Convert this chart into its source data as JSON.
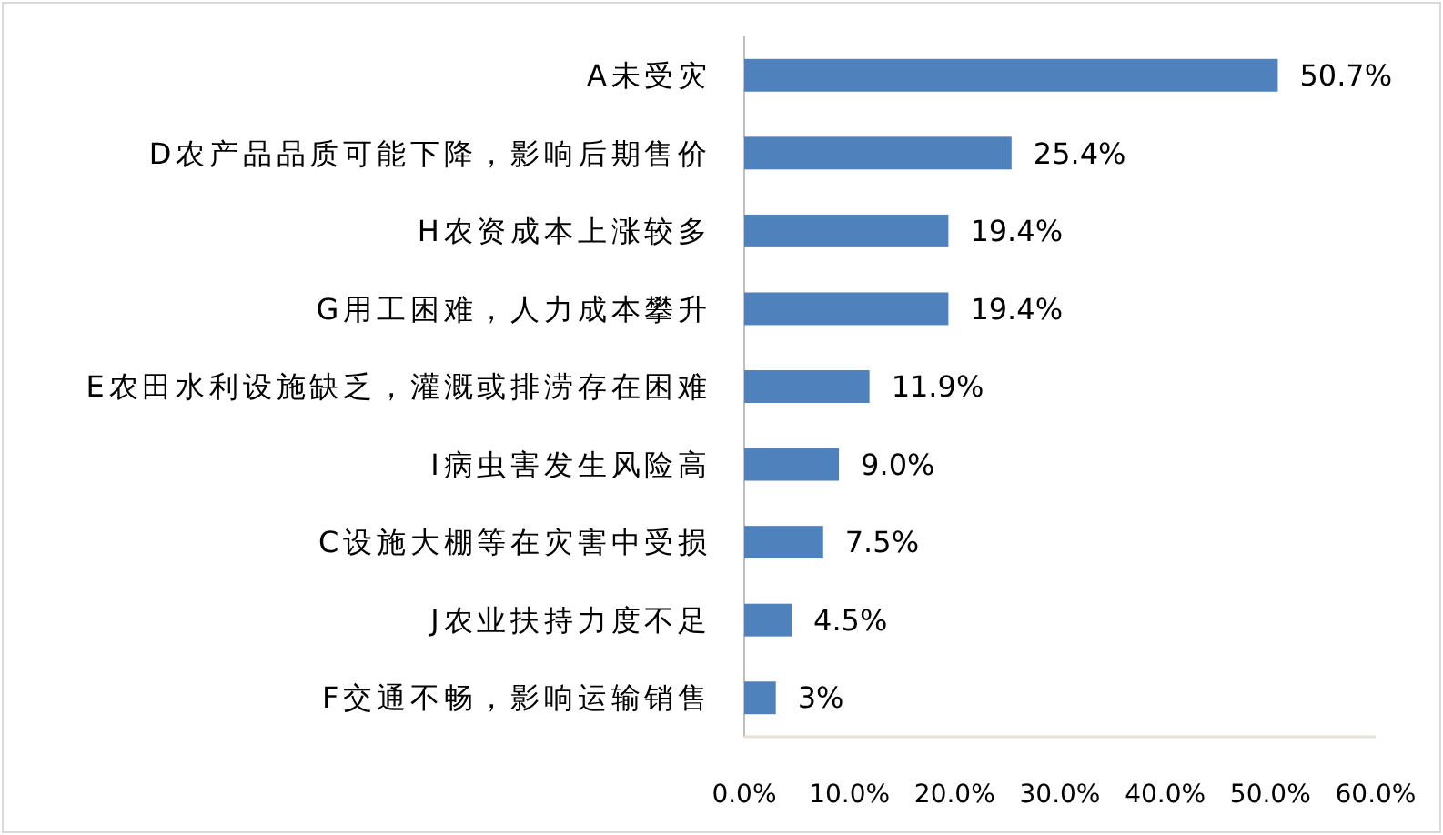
{
  "chart_data": {
    "type": "bar",
    "orientation": "horizontal",
    "categories": [
      "A未受灾",
      "D农产品品质可能下降，影响后期售价",
      "H农资成本上涨较多",
      "G用工困难，人力成本攀升",
      "E农田水利设施缺乏，灌溉或排涝存在困难",
      "I病虫害发生风险高",
      "C设施大棚等在灾害中受损",
      "J农业扶持力度不足",
      "F交通不畅，影响运输销售"
    ],
    "values": [
      50.7,
      25.4,
      19.4,
      19.4,
      11.9,
      9.0,
      7.5,
      4.5,
      3
    ],
    "value_labels": [
      "50.7%",
      "25.4%",
      "19.4%",
      "19.4%",
      "11.9%",
      "9.0%",
      "7.5%",
      "4.5%",
      "3%"
    ],
    "color": "#4f81bd",
    "xlim": [
      0,
      60
    ],
    "xticks": [
      {
        "value": 0,
        "label": "0.0%"
      },
      {
        "value": 10,
        "label": "10.0%"
      },
      {
        "value": 20,
        "label": "20.0%"
      },
      {
        "value": 30,
        "label": "30.0%"
      },
      {
        "value": 40,
        "label": "40.0%"
      },
      {
        "value": 50,
        "label": "50.0%"
      },
      {
        "value": 60,
        "label": "60.0%"
      }
    ]
  }
}
